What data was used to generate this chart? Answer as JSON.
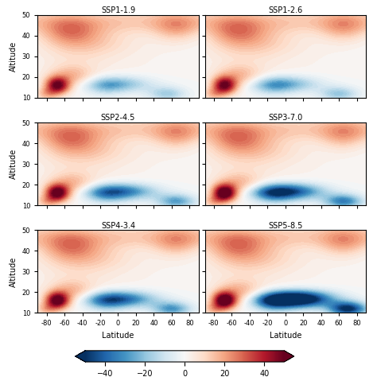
{
  "titles": [
    "SSP1-1.9",
    "SSP1-2.6",
    "SSP2-4.5",
    "SSP3-7.0",
    "SSP4-3.4",
    "SSP5-8.5"
  ],
  "lat_ticks": [
    -80,
    -60,
    -40,
    -20,
    0,
    20,
    40,
    60,
    80
  ],
  "alt_ticks": [
    10,
    20,
    30,
    40,
    50
  ],
  "colorbar_ticks": [
    -40,
    -20,
    0,
    20,
    40
  ],
  "vmin": -50,
  "vmax": 50,
  "xlabel": "Latitude",
  "ylabel": "Altitude",
  "cmap": "RdBu_r",
  "blue_scales": [
    1.0,
    1.1,
    1.6,
    2.0,
    1.7,
    3.0
  ],
  "red_south_scales": [
    1.0,
    1.0,
    1.1,
    1.2,
    1.1,
    1.2
  ],
  "blue_lat_centers": [
    -5,
    -5,
    0,
    0,
    0,
    10
  ],
  "blue_right_lats": [
    55,
    60,
    65,
    65,
    60,
    70
  ]
}
